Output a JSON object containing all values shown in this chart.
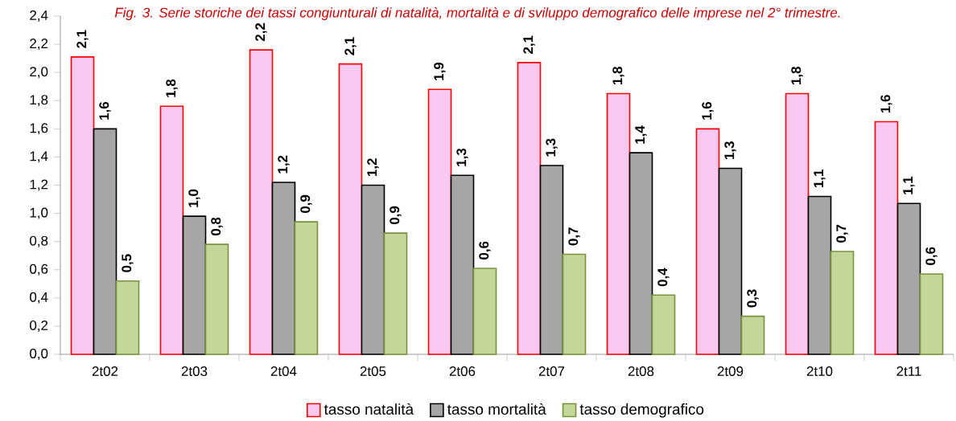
{
  "chart_data": {
    "type": "bar",
    "title": "Fig. 3. Serie storiche dei tassi congiunturali di natalità, mortalità e di sviluppo demografico delle imprese nel 2° trimestre.",
    "categories": [
      "2t02",
      "2t03",
      "2t04",
      "2t05",
      "2t06",
      "2t07",
      "2t08",
      "2t09",
      "2t10",
      "2t11"
    ],
    "series": [
      {
        "name": "tasso natalità",
        "color": "#fac8f0",
        "values": [
          2.11,
          1.76,
          2.16,
          2.06,
          1.88,
          2.07,
          1.85,
          1.6,
          1.85,
          1.65
        ],
        "value_labels": [
          "2,1",
          "1,8",
          "2,2",
          "2,1",
          "1,9",
          "2,1",
          "1,8",
          "1,6",
          "1,8",
          "1,6"
        ]
      },
      {
        "name": "tasso mortalità",
        "color": "#a6a6a6",
        "values": [
          1.6,
          0.98,
          1.22,
          1.2,
          1.27,
          1.34,
          1.43,
          1.32,
          1.12,
          1.07
        ],
        "value_labels": [
          "1,6",
          "1,0",
          "1,2",
          "1,2",
          "1,3",
          "1,3",
          "1,4",
          "1,3",
          "1,1",
          "1,1"
        ]
      },
      {
        "name": "tasso demografico",
        "color": "#c4d79b",
        "values": [
          0.52,
          0.78,
          0.94,
          0.86,
          0.61,
          0.71,
          0.42,
          0.27,
          0.73,
          0.57
        ],
        "value_labels": [
          "0,5",
          "0,8",
          "0,9",
          "0,9",
          "0,6",
          "0,7",
          "0,4",
          "0,3",
          "0,7",
          "0,6"
        ]
      }
    ],
    "ylim": [
      0,
      2.4
    ],
    "yticks": [
      {
        "value": 0,
        "label": "0,0"
      },
      {
        "value": 0.2,
        "label": "0,2"
      },
      {
        "value": 0.4,
        "label": "0,4"
      },
      {
        "value": 0.6,
        "label": "0,6"
      },
      {
        "value": 0.8,
        "label": "0,8"
      },
      {
        "value": 1.0,
        "label": "1,0"
      },
      {
        "value": 1.2,
        "label": "1,2"
      },
      {
        "value": 1.4,
        "label": "1,4"
      },
      {
        "value": 1.6,
        "label": "1,6"
      },
      {
        "value": 1.8,
        "label": "1,8"
      },
      {
        "value": 2.0,
        "label": "2,0"
      },
      {
        "value": 2.2,
        "label": "2,2"
      },
      {
        "value": 2.4,
        "label": "2,4"
      }
    ],
    "legend": "bottom",
    "grid": false
  }
}
